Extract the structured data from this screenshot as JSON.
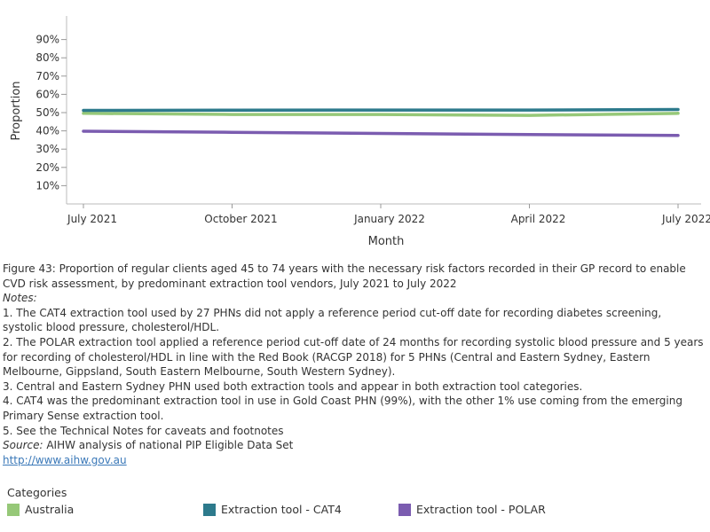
{
  "chart_data": {
    "type": "line",
    "ylabel": "Proportion",
    "xlabel": "Month",
    "x": [
      "July 2021",
      "October 2021",
      "January 2022",
      "April 2022",
      "July 2022"
    ],
    "ylim": [
      0,
      100
    ],
    "yticks": [
      "10%",
      "20%",
      "30%",
      "40%",
      "50%",
      "60%",
      "70%",
      "80%",
      "90%"
    ],
    "grid": false,
    "series": [
      {
        "name": "Australia",
        "color": "#96c878",
        "values": [
          49.6,
          49.0,
          49.0,
          48.5,
          49.6
        ]
      },
      {
        "name": "Extraction tool - CAT4",
        "color": "#2d7a8c",
        "values": [
          51.2,
          51.3,
          51.4,
          51.4,
          51.7
        ]
      },
      {
        "name": "Extraction tool - POLAR",
        "color": "#7b5cb0",
        "values": [
          39.8,
          39.2,
          38.6,
          38.0,
          37.5
        ]
      }
    ]
  },
  "caption": {
    "figure": "Figure 43: Proportion of regular clients aged 45 to 74 years with the necessary risk factors recorded in their GP record to enable CVD risk assessment, by predominant extraction tool vendors, July 2021 to July 2022",
    "notes_label": "Notes:",
    "notes": [
      "1. The CAT4 extraction tool used by 27 PHNs did not apply a reference period cut-off date for recording diabetes screening, systolic blood pressure, cholesterol/HDL.",
      "2. The POLAR extraction tool applied a reference period cut-off date of 24 months for recording systolic blood pressure and 5 years for recording of cholesterol/HDL in line with the Red Book (RACGP 2018) for 5 PHNs (Central and Eastern Sydney, Eastern Melbourne, Gippsland, South Eastern Melbourne, South Western Sydney).",
      "3. Central and Eastern Sydney PHN used both extraction tools and appear in both extraction tool categories.",
      "4. CAT4 was the predominant extraction tool in use in Gold Coast PHN (99%), with the other 1% use coming from the emerging Primary Sense extraction tool.",
      "5. See the Technical Notes for caveats and footnotes"
    ],
    "source_label": "Source:",
    "source_text": " AIHW analysis of national PIP Eligible Data Set",
    "link": "http://www.aihw.gov.au"
  },
  "legend": {
    "title": "Categories",
    "items": [
      {
        "label": "Australia",
        "color": "#96c878"
      },
      {
        "label": "Extraction tool - CAT4",
        "color": "#2d7a8c"
      },
      {
        "label": "Extraction tool - POLAR",
        "color": "#7b5cb0"
      }
    ]
  }
}
